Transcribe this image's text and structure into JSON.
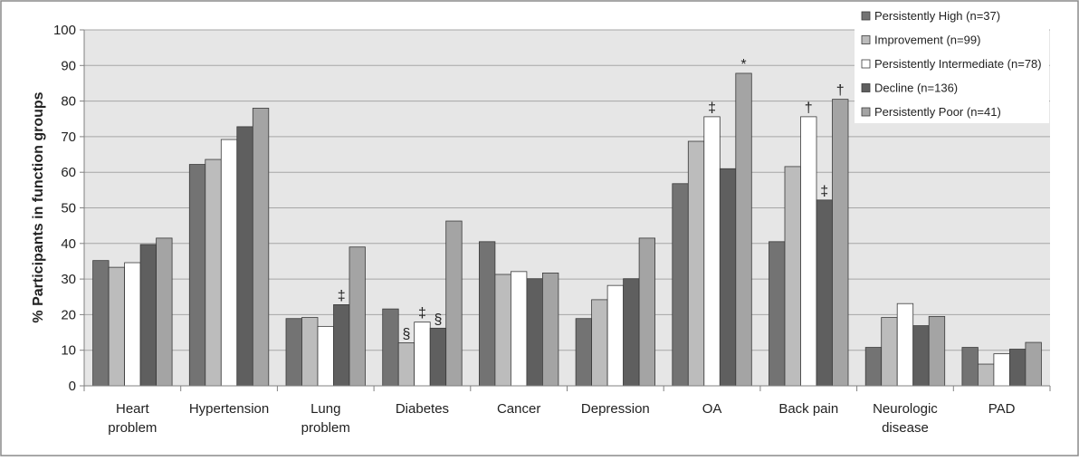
{
  "chart_data": {
    "type": "bar",
    "title": "",
    "xlabel": "",
    "ylabel": "% Participants in function groups",
    "ylim": [
      0,
      100
    ],
    "yticks": [
      0,
      10,
      20,
      30,
      40,
      50,
      60,
      70,
      80,
      90,
      100
    ],
    "grid": true,
    "legend_position": "top-right",
    "categories": [
      [
        "Heart",
        "problem"
      ],
      [
        "Hypertension"
      ],
      [
        "Lung",
        "problem"
      ],
      [
        "Diabetes"
      ],
      [
        "Cancer"
      ],
      [
        "Depression"
      ],
      [
        "OA"
      ],
      [
        "Back pain"
      ],
      [
        "Neurologic",
        "disease"
      ],
      [
        "PAD"
      ]
    ],
    "series": [
      {
        "name": "Persistently High (n=37)",
        "color": "#737373",
        "values": [
          35.2,
          62.2,
          18.9,
          21.6,
          40.5,
          18.9,
          56.8,
          40.5,
          10.8,
          10.8
        ]
      },
      {
        "name": "Improvement (n=99)",
        "color": "#bcbcbc",
        "values": [
          33.3,
          63.6,
          19.2,
          12.1,
          31.3,
          24.2,
          68.7,
          61.6,
          19.2,
          6.1
        ]
      },
      {
        "name": "Persistently Intermediate (n=78)",
        "color": "#ffffff",
        "values": [
          34.6,
          69.2,
          16.7,
          17.9,
          32.1,
          28.2,
          75.6,
          75.6,
          23.1,
          9.0
        ]
      },
      {
        "name": "Decline (n=136)",
        "color": "#5f5f5f",
        "values": [
          39.7,
          72.8,
          22.8,
          16.2,
          30.1,
          30.1,
          61.0,
          52.2,
          16.9,
          10.3
        ]
      },
      {
        "name": "Persistently Poor (n=41)",
        "color": "#a4a4a4",
        "values": [
          41.5,
          78.0,
          39.0,
          46.3,
          31.7,
          41.5,
          87.8,
          80.5,
          19.5,
          12.2
        ]
      }
    ],
    "annotations": [
      {
        "category": 2,
        "series": 3,
        "text": "‡"
      },
      {
        "category": 3,
        "series": 1,
        "text": "§"
      },
      {
        "category": 3,
        "series": 2,
        "text": "‡"
      },
      {
        "category": 3,
        "series": 3,
        "text": "§"
      },
      {
        "category": 6,
        "series": 2,
        "text": "‡"
      },
      {
        "category": 6,
        "series": 4,
        "text": "*"
      },
      {
        "category": 7,
        "series": 2,
        "text": "†"
      },
      {
        "category": 7,
        "series": 3,
        "text": "‡"
      },
      {
        "category": 7,
        "series": 4,
        "text": "†"
      }
    ]
  }
}
